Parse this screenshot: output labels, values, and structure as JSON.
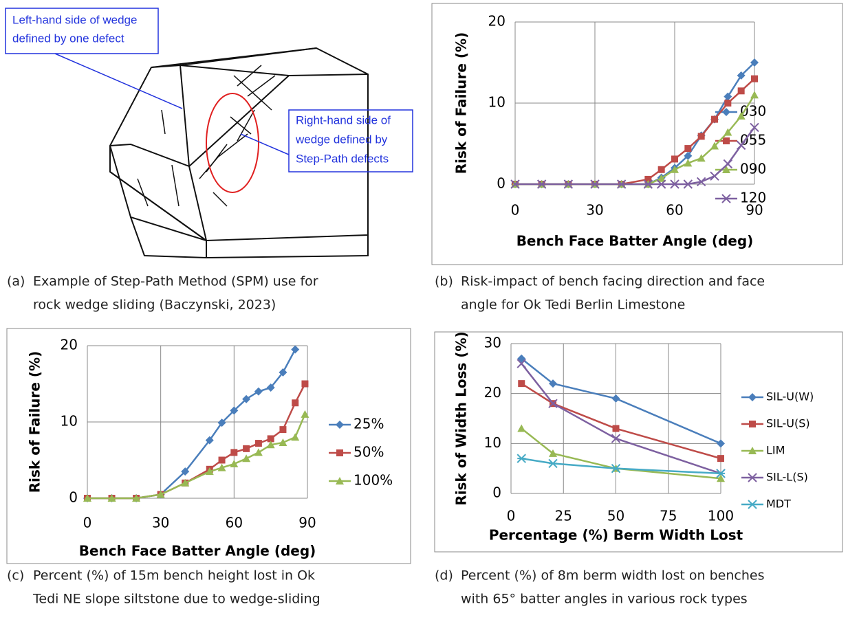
{
  "diagram": {
    "labels": [
      [
        "Left-hand side of wedge",
        "defined by one defect"
      ],
      [
        "Right-hand side of",
        "wedge defined by",
        "Step-Path defects"
      ]
    ]
  },
  "captions": [
    {
      "label": "(a)",
      "lines": [
        "Example of Step-Path Method (SPM) use for",
        "rock wedge sliding (Baczynski, 2023)"
      ]
    },
    {
      "label": "(b)",
      "lines": [
        "Risk-impact of bench facing direction and face",
        "angle for Ok Tedi Berlin Limestone"
      ]
    },
    {
      "label": "(c)",
      "lines": [
        "Percent (%) of 15m bench height lost in Ok",
        "Tedi NE slope siltstone due to wedge-sliding"
      ]
    },
    {
      "label": "(d)",
      "lines": [
        "Percent (%) of 8m berm width lost on benches",
        "with 65° batter angles in various rock types"
      ]
    }
  ],
  "chart_data": [
    {
      "type": "line",
      "xlabel": "Bench Face Batter Angle (deg)",
      "ylabel": "Risk of Failure (%)",
      "x": [
        0,
        10,
        20,
        30,
        40,
        50,
        55,
        60,
        65,
        70,
        75,
        80,
        85,
        90
      ],
      "xlim": [
        0,
        90
      ],
      "xticks": [
        0,
        30,
        60,
        90
      ],
      "ylim": [
        0,
        20
      ],
      "yticks": [
        0,
        10,
        20
      ],
      "grid": true,
      "series": [
        {
          "name": "030",
          "color": "#4a7ebb",
          "marker": "diamond",
          "values": [
            0,
            0,
            0,
            0,
            0,
            0,
            0.8,
            2,
            3.5,
            6,
            8,
            10.8,
            13.4,
            15
          ]
        },
        {
          "name": "055",
          "color": "#be4b48",
          "marker": "square",
          "values": [
            0,
            0,
            0,
            0,
            0,
            0.6,
            1.8,
            3.1,
            4.4,
            5.9,
            8,
            10,
            11.5,
            13
          ]
        },
        {
          "name": "090",
          "color": "#98b954",
          "marker": "triangle",
          "values": [
            0,
            0,
            0,
            0,
            0,
            0,
            0.7,
            1.8,
            2.6,
            3.2,
            4.7,
            6.4,
            8.4,
            11
          ]
        },
        {
          "name": "120",
          "color": "#7d60a0",
          "marker": "x",
          "values": [
            0,
            0,
            0,
            0,
            0,
            0,
            0,
            0,
            0,
            0.3,
            1,
            2.5,
            4.8,
            7
          ]
        }
      ]
    },
    {
      "type": "line",
      "xlabel": "Bench Face Batter Angle (deg)",
      "ylabel": "Risk of Failure (%)",
      "x": [
        0,
        10,
        20,
        30,
        40,
        50,
        55,
        60,
        65,
        70,
        75,
        80,
        85,
        89
      ],
      "xlim": [
        0,
        90
      ],
      "xticks": [
        0,
        30,
        60,
        90
      ],
      "ylim": [
        0,
        20
      ],
      "yticks": [
        0,
        10,
        20
      ],
      "grid": true,
      "series": [
        {
          "name": "25%",
          "color": "#4a7ebb",
          "marker": "diamond",
          "values": [
            0,
            0,
            0,
            0.5,
            3.5,
            7.6,
            9.9,
            11.5,
            13,
            14,
            14.5,
            16.5,
            19.5,
            null
          ]
        },
        {
          "name": "50%",
          "color": "#be4b48",
          "marker": "square",
          "values": [
            0,
            0,
            0,
            0.5,
            2,
            3.8,
            5,
            6,
            6.5,
            7.2,
            7.8,
            9,
            12.5,
            15
          ]
        },
        {
          "name": "100%",
          "color": "#98b954",
          "marker": "triangle",
          "values": [
            0,
            0,
            0,
            0.5,
            2,
            3.5,
            4,
            4.5,
            5.2,
            6,
            7,
            7.3,
            8,
            11
          ]
        }
      ]
    },
    {
      "type": "line",
      "xlabel": "Percentage (%) Berm Width Lost",
      "ylabel": "Risk of Width Loss (%)",
      "x": [
        5,
        20,
        50,
        100
      ],
      "xlim": [
        0,
        100
      ],
      "xticks": [
        0,
        25,
        50,
        75,
        100
      ],
      "ylim": [
        0,
        30
      ],
      "yticks": [
        0,
        10,
        20,
        30
      ],
      "grid": true,
      "series": [
        {
          "name": "SIL-U(W)",
          "color": "#4a7ebb",
          "marker": "diamond",
          "values": [
            27,
            22,
            19,
            10
          ]
        },
        {
          "name": "SIL-U(S)",
          "color": "#be4b48",
          "marker": "square",
          "values": [
            22,
            18,
            13,
            7
          ]
        },
        {
          "name": "LIM",
          "color": "#98b954",
          "marker": "triangle",
          "values": [
            13,
            8,
            5,
            3
          ]
        },
        {
          "name": "SIL-L(S)",
          "color": "#7d60a0",
          "marker": "x",
          "values": [
            26,
            18,
            11,
            4
          ]
        },
        {
          "name": "MDT",
          "color": "#46aac5",
          "marker": "star",
          "values": [
            7,
            6,
            5,
            4
          ]
        }
      ]
    }
  ]
}
